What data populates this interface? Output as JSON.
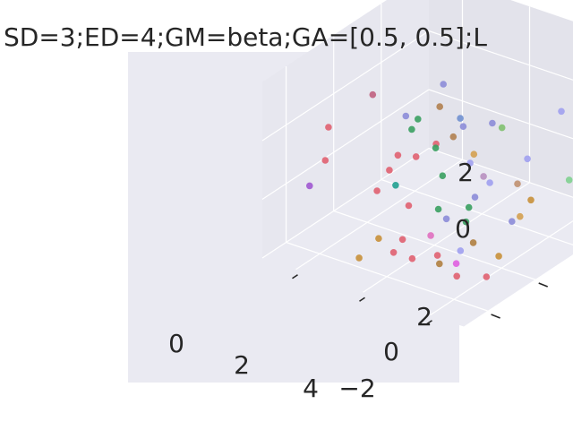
{
  "chart_data": {
    "type": "scatter",
    "projection": "3d",
    "style": "seaborn darkgrid",
    "title": "SD=3;ED=4;GM=beta;GA=[0.5, 0.5];L",
    "x_ticks": [
      "0",
      "2",
      "4"
    ],
    "y_ticks": [
      "−2",
      "0",
      "2"
    ],
    "z_ticks": [
      "0",
      "2"
    ],
    "xlim": [
      -1,
      5
    ],
    "ylim": [
      -3,
      4
    ],
    "zlim": [
      -2,
      4
    ],
    "grid": true,
    "colors": {
      "pane_back": "#e7e7ef",
      "pane_side": "#e3e3eb",
      "pane_floor": "#eaeaf2",
      "grid": "#ffffff",
      "text": "#262626"
    },
    "points": [
      {
        "x": 0.0,
        "y": 3.2,
        "z": 1.0,
        "color": "#8c8cd8"
      },
      {
        "x": 0.6,
        "y": 2.2,
        "z": 1.0,
        "color": "#b08050"
      },
      {
        "x": -0.9,
        "y": 1.5,
        "z": 1.2,
        "color": "#c06080"
      },
      {
        "x": -0.8,
        "y": -0.5,
        "z": 1.2,
        "color": "#e06070"
      },
      {
        "x": -0.4,
        "y": -1.2,
        "z": 0.6,
        "color": "#e06070"
      },
      {
        "x": -0.3,
        "y": -2.0,
        "z": 0.2,
        "color": "#a058d0"
      },
      {
        "x": 1.4,
        "y": -1.5,
        "z": -1.2,
        "color": "#c8903a"
      },
      {
        "x": 0.3,
        "y": 1.2,
        "z": 1.1,
        "color": "#8c8cd8"
      },
      {
        "x": 0.8,
        "y": 1.0,
        "z": 1.3,
        "color": "#3aa060"
      },
      {
        "x": 0.9,
        "y": 0.6,
        "z": 1.2,
        "color": "#3aa060"
      },
      {
        "x": 1.3,
        "y": 2.2,
        "z": 0.6,
        "color": "#8c8cd8"
      },
      {
        "x": 1.6,
        "y": 3.0,
        "z": 0.4,
        "color": "#8c8cd8"
      },
      {
        "x": 1.2,
        "y": 1.2,
        "z": 0.5,
        "color": "#e06070"
      },
      {
        "x": 0.7,
        "y": 0.3,
        "z": 0.4,
        "color": "#e06070"
      },
      {
        "x": 1.4,
        "y": 0.9,
        "z": 0.6,
        "color": "#3aa060"
      },
      {
        "x": 1.1,
        "y": 0.5,
        "z": 0.4,
        "color": "#e06070"
      },
      {
        "x": 0.8,
        "y": -0.2,
        "z": 0.2,
        "color": "#e06070"
      },
      {
        "x": 1.0,
        "y": -1.0,
        "z": 0.0,
        "color": "#e06070"
      },
      {
        "x": 1.2,
        "y": -0.5,
        "z": 0.0,
        "color": "#20a090"
      },
      {
        "x": 1.8,
        "y": -0.8,
        "z": -0.3,
        "color": "#e06070"
      },
      {
        "x": 2.4,
        "y": -0.4,
        "z": -0.4,
        "color": "#3aa060"
      },
      {
        "x": 2.1,
        "y": 0.2,
        "z": 0.3,
        "color": "#3aa060"
      },
      {
        "x": 1.5,
        "y": 1.5,
        "z": 0.7,
        "color": "#b08050"
      },
      {
        "x": 1.0,
        "y": 2.5,
        "z": 0.6,
        "color": "#7090d0"
      },
      {
        "x": 1.9,
        "y": 1.8,
        "z": 0.1,
        "color": "#d4a050"
      },
      {
        "x": 2.0,
        "y": 1.5,
        "z": 0.0,
        "color": "#a0a0f0"
      },
      {
        "x": 2.1,
        "y": 2.7,
        "z": 0.6,
        "color": "#80c070"
      },
      {
        "x": 2.8,
        "y": 1.2,
        "z": -0.2,
        "color": "#a0a0f0"
      },
      {
        "x": 3.3,
        "y": 3.5,
        "z": 1.2,
        "color": "#a0a0f0"
      },
      {
        "x": 3.0,
        "y": 2.5,
        "z": 0.0,
        "color": "#a0a0f0"
      },
      {
        "x": 2.4,
        "y": 1.5,
        "z": -0.3,
        "color": "#b890c0"
      },
      {
        "x": 2.5,
        "y": 1.0,
        "z": -0.7,
        "color": "#8c8cd8"
      },
      {
        "x": 2.6,
        "y": 0.6,
        "z": -0.8,
        "color": "#3aa060"
      },
      {
        "x": 2.5,
        "y": -0.2,
        "z": -0.8,
        "color": "#8c8cd8"
      },
      {
        "x": 2.8,
        "y": 0.2,
        "z": -1.0,
        "color": "#3aa060"
      },
      {
        "x": 3.2,
        "y": 1.8,
        "z": -0.4,
        "color": "#c09070"
      },
      {
        "x": 3.6,
        "y": 1.8,
        "z": -0.8,
        "color": "#c8903a"
      },
      {
        "x": 4.1,
        "y": 2.7,
        "z": -0.4,
        "color": "#80d090"
      },
      {
        "x": 3.7,
        "y": 1.2,
        "z": -1.0,
        "color": "#d4a050"
      },
      {
        "x": 3.6,
        "y": 1.0,
        "z": -1.1,
        "color": "#8c8cd8"
      },
      {
        "x": 2.6,
        "y": -1.0,
        "z": -0.9,
        "color": "#e070c0"
      },
      {
        "x": 1.9,
        "y": -1.2,
        "z": -1.2,
        "color": "#e06070"
      },
      {
        "x": 2.4,
        "y": -1.5,
        "z": -1.5,
        "color": "#e06070"
      },
      {
        "x": 2.8,
        "y": -1.0,
        "z": -1.5,
        "color": "#e06070"
      },
      {
        "x": 3.3,
        "y": -0.2,
        "z": -1.3,
        "color": "#b08040"
      },
      {
        "x": 3.2,
        "y": -0.6,
        "z": -1.4,
        "color": "#a0a0f0"
      },
      {
        "x": 3.0,
        "y": -1.2,
        "z": -1.6,
        "color": "#b08040"
      },
      {
        "x": 3.5,
        "y": -1.2,
        "z": -1.4,
        "color": "#e060e0"
      },
      {
        "x": 4.2,
        "y": -0.4,
        "z": -1.3,
        "color": "#c8903a"
      },
      {
        "x": 3.8,
        "y": -1.6,
        "z": -1.5,
        "color": "#e06070"
      },
      {
        "x": 4.4,
        "y": -1.2,
        "z": -1.5,
        "color": "#e06070"
      },
      {
        "x": 2.2,
        "y": -2.0,
        "z": -1.1,
        "color": "#e06070"
      },
      {
        "x": 1.6,
        "y": -2.6,
        "z": -1.2,
        "color": "#c8903a"
      }
    ]
  }
}
